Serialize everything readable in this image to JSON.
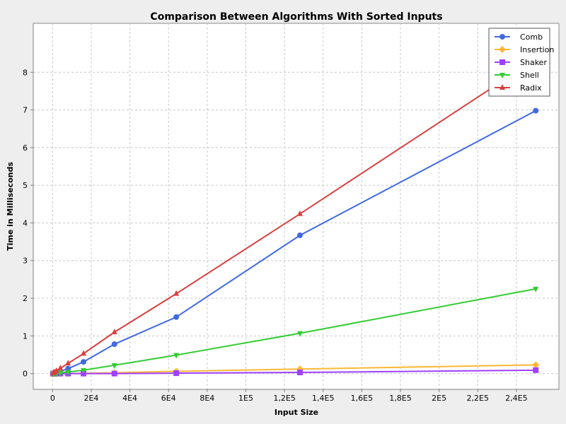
{
  "chart_data": {
    "type": "line",
    "title": "Comparison Between Algorithms With Sorted Inputs",
    "xlabel": "Input Size",
    "ylabel": "Time in Milliseconds",
    "xlim": [
      -10000,
      262000
    ],
    "ylim": [
      -0.42,
      9.3
    ],
    "xticks": [
      {
        "value": 0,
        "label": "0"
      },
      {
        "value": 20000,
        "label": "2E4"
      },
      {
        "value": 40000,
        "label": "4E4"
      },
      {
        "value": 60000,
        "label": "6E4"
      },
      {
        "value": 80000,
        "label": "8E4"
      },
      {
        "value": 100000,
        "label": "1E5"
      },
      {
        "value": 120000,
        "label": "1,2E5"
      },
      {
        "value": 140000,
        "label": "1,4E5"
      },
      {
        "value": 160000,
        "label": "1,6E5"
      },
      {
        "value": 180000,
        "label": "1,8E5"
      },
      {
        "value": 200000,
        "label": "2E5"
      },
      {
        "value": 220000,
        "label": "2,2E5"
      },
      {
        "value": 240000,
        "label": "2,4E5"
      }
    ],
    "yticks": [
      {
        "value": 0,
        "label": "0"
      },
      {
        "value": 1,
        "label": "1"
      },
      {
        "value": 2,
        "label": "2"
      },
      {
        "value": 3,
        "label": "3"
      },
      {
        "value": 4,
        "label": "4"
      },
      {
        "value": 5,
        "label": "5"
      },
      {
        "value": 6,
        "label": "6"
      },
      {
        "value": 7,
        "label": "7"
      },
      {
        "value": 8,
        "label": "8"
      }
    ],
    "grid": true,
    "legend_position": "top-right",
    "x": [
      250,
      500,
      1000,
      2000,
      4000,
      8000,
      16000,
      32000,
      64000,
      128000,
      250000
    ],
    "series": [
      {
        "name": "Comb",
        "color": "#4169e1",
        "marker": "circle",
        "values": [
          0.0,
          0.01,
          0.01,
          0.03,
          0.06,
          0.13,
          0.31,
          0.78,
          1.5,
          3.67,
          6.98
        ]
      },
      {
        "name": "Insertion",
        "color": "#ffb733",
        "marker": "diamond",
        "values": [
          0.0,
          0.0,
          0.0,
          0.0,
          0.0,
          0.0,
          0.01,
          0.02,
          0.06,
          0.12,
          0.23
        ]
      },
      {
        "name": "Shaker",
        "color": "#a040ff",
        "marker": "square",
        "values": [
          0.0,
          0.0,
          0.0,
          0.0,
          0.0,
          0.0,
          0.0,
          0.0,
          0.01,
          0.03,
          0.09
        ]
      },
      {
        "name": "Shell",
        "color": "#33cc33",
        "marker": "triangle-down",
        "values": [
          0.0,
          0.0,
          0.0,
          0.01,
          0.02,
          0.04,
          0.09,
          0.22,
          0.49,
          1.07,
          2.25
        ]
      },
      {
        "name": "Radix",
        "color": "#d94040",
        "marker": "triangle-up",
        "values": [
          0.01,
          0.02,
          0.04,
          0.07,
          0.14,
          0.27,
          0.53,
          1.1,
          2.12,
          4.24,
          8.35
        ]
      }
    ]
  }
}
